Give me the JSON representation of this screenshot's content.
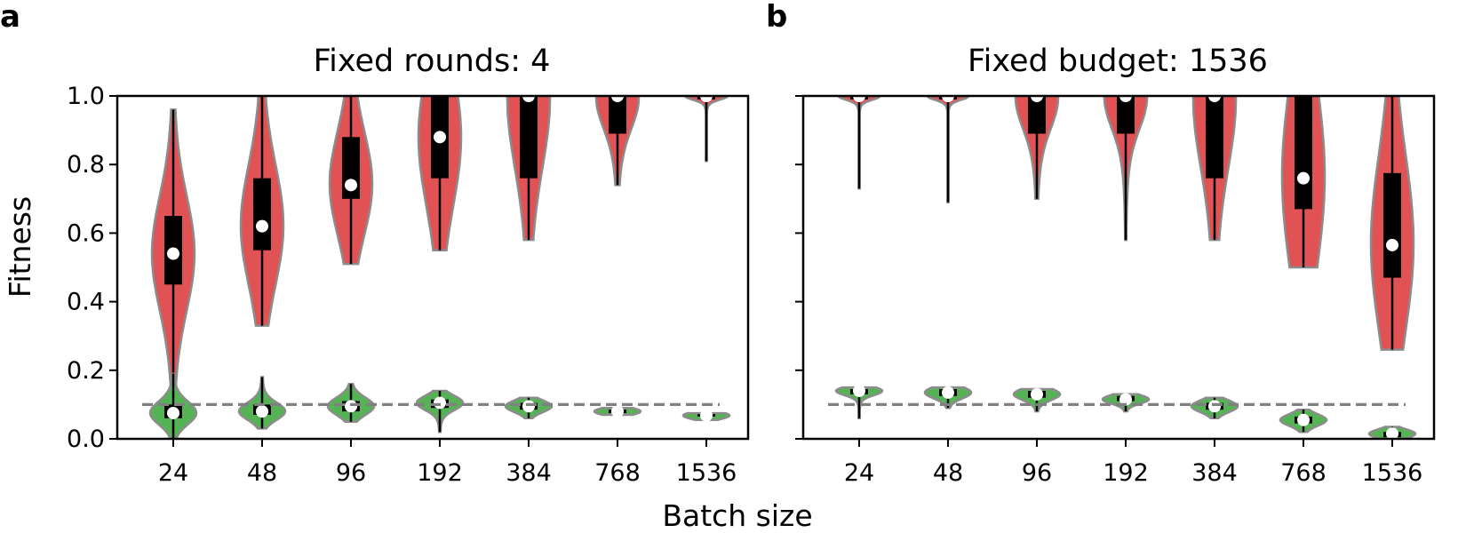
{
  "figure": {
    "xlabel": "Batch size",
    "ylabel": "Fitness"
  },
  "colors": {
    "top_violin": "#e05254",
    "bottom_violin": "#55b355",
    "violin_edge": "#8c8c8c",
    "box": "#000000",
    "median": "#ffffff",
    "reference_line": "#808080"
  },
  "chart_data": [
    {
      "type": "violin",
      "panel": "a",
      "title": "Fixed rounds: 4",
      "categories": [
        "24",
        "48",
        "96",
        "192",
        "384",
        "768",
        "1536"
      ],
      "ylim": [
        0.0,
        1.0
      ],
      "yticks": [
        "0.0",
        "0.2",
        "0.4",
        "0.6",
        "0.8",
        "1.0"
      ],
      "reference_line": 0.1,
      "series": [
        {
          "color_role": "top",
          "groups": [
            {
              "min": 0.01,
              "q1": 0.45,
              "median": 0.54,
              "q3": 0.65,
              "max": 0.96
            },
            {
              "min": 0.33,
              "q1": 0.55,
              "median": 0.62,
              "q3": 0.76,
              "max": 1.0
            },
            {
              "min": 0.51,
              "q1": 0.7,
              "median": 0.74,
              "q3": 0.88,
              "max": 1.0
            },
            {
              "min": 0.55,
              "q1": 0.76,
              "median": 0.88,
              "q3": 1.0,
              "max": 1.0
            },
            {
              "min": 0.58,
              "q1": 0.76,
              "median": 1.0,
              "q3": 1.0,
              "max": 1.0
            },
            {
              "min": 0.74,
              "q1": 0.89,
              "median": 1.0,
              "q3": 1.0,
              "max": 1.0
            },
            {
              "min": 0.81,
              "q1": 0.99,
              "median": 1.0,
              "q3": 1.0,
              "max": 1.0
            }
          ]
        },
        {
          "color_role": "bottom",
          "groups": [
            {
              "min": 0.0,
              "q1": 0.06,
              "median": 0.075,
              "q3": 0.1,
              "max": 0.19
            },
            {
              "min": 0.03,
              "q1": 0.07,
              "median": 0.08,
              "q3": 0.1,
              "max": 0.18
            },
            {
              "min": 0.05,
              "q1": 0.08,
              "median": 0.095,
              "q3": 0.11,
              "max": 0.16
            },
            {
              "min": 0.02,
              "q1": 0.09,
              "median": 0.105,
              "q3": 0.115,
              "max": 0.14
            },
            {
              "min": 0.06,
              "q1": 0.085,
              "median": 0.095,
              "q3": 0.105,
              "max": 0.12
            },
            {
              "min": 0.07,
              "q1": 0.075,
              "median": 0.08,
              "q3": 0.085,
              "max": 0.09
            },
            {
              "min": 0.055,
              "q1": 0.065,
              "median": 0.068,
              "q3": 0.072,
              "max": 0.075
            }
          ]
        }
      ]
    },
    {
      "type": "violin",
      "panel": "b",
      "title": "Fixed budget: 1536",
      "categories": [
        "24",
        "48",
        "96",
        "192",
        "384",
        "768",
        "1536"
      ],
      "ylim": [
        0.0,
        1.0
      ],
      "yticks": [
        "",
        "",
        "",
        "",
        "",
        ""
      ],
      "reference_line": 0.1,
      "series": [
        {
          "color_role": "top",
          "groups": [
            {
              "min": 0.73,
              "q1": 0.99,
              "median": 1.0,
              "q3": 1.0,
              "max": 1.0
            },
            {
              "min": 0.69,
              "q1": 0.99,
              "median": 1.0,
              "q3": 1.0,
              "max": 1.0
            },
            {
              "min": 0.7,
              "q1": 0.89,
              "median": 1.0,
              "q3": 1.0,
              "max": 1.0
            },
            {
              "min": 0.58,
              "q1": 0.89,
              "median": 1.0,
              "q3": 1.0,
              "max": 1.0
            },
            {
              "min": 0.58,
              "q1": 0.76,
              "median": 1.0,
              "q3": 1.0,
              "max": 1.0
            },
            {
              "min": 0.5,
              "q1": 0.67,
              "median": 0.76,
              "q3": 1.0,
              "max": 1.0
            },
            {
              "min": 0.26,
              "q1": 0.47,
              "median": 0.565,
              "q3": 0.775,
              "max": 1.0
            }
          ]
        },
        {
          "color_role": "bottom",
          "groups": [
            {
              "min": 0.06,
              "q1": 0.13,
              "median": 0.14,
              "q3": 0.145,
              "max": 0.15
            },
            {
              "min": 0.09,
              "q1": 0.125,
              "median": 0.135,
              "q3": 0.145,
              "max": 0.15
            },
            {
              "min": 0.08,
              "q1": 0.12,
              "median": 0.13,
              "q3": 0.14,
              "max": 0.145
            },
            {
              "min": 0.08,
              "q1": 0.11,
              "median": 0.115,
              "q3": 0.125,
              "max": 0.13
            },
            {
              "min": 0.06,
              "q1": 0.085,
              "median": 0.095,
              "q3": 0.105,
              "max": 0.12
            },
            {
              "min": 0.02,
              "q1": 0.045,
              "median": 0.055,
              "q3": 0.065,
              "max": 0.085
            },
            {
              "min": 0.0,
              "q1": 0.005,
              "median": 0.015,
              "q3": 0.02,
              "max": 0.035
            }
          ]
        }
      ]
    }
  ]
}
